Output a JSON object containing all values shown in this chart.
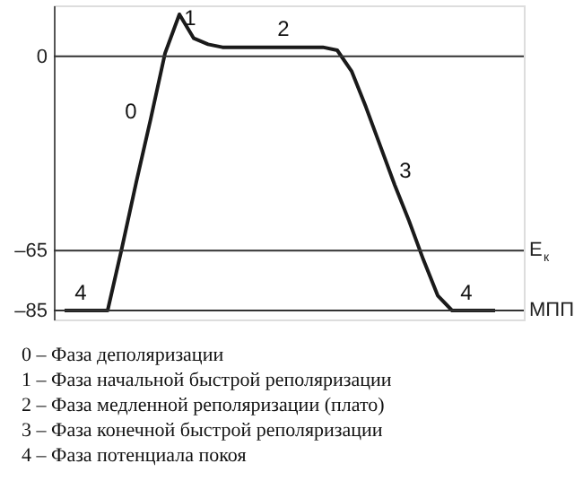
{
  "chart_data": {
    "type": "line",
    "categories": [
      null,
      null,
      null,
      null,
      null,
      null,
      null,
      null,
      null,
      null,
      null,
      null,
      null,
      null,
      null,
      null,
      null,
      null,
      null,
      null,
      null,
      null,
      null,
      null,
      null,
      null,
      null,
      null,
      null,
      null,
      null
    ],
    "values": [
      -85,
      -85,
      -85,
      -85,
      -64,
      -42,
      -21,
      1,
      14,
      6,
      4,
      3,
      3,
      3,
      3,
      3,
      3,
      3,
      3,
      2,
      -5,
      -17,
      -30,
      -43,
      -55,
      -68,
      -80,
      -85,
      -85,
      -85,
      -85
    ],
    "color": "#1a1a1a",
    "ylim": [
      -88,
      17
    ],
    "yticks": [
      0,
      {
        "value": -65,
        "label": "–65"
      },
      {
        "value": -85,
        "label": "–85"
      }
    ],
    "tick_labels": "y",
    "grid": false,
    "marker": "none",
    "line_style": "solid",
    "ref_lines": [
      {
        "axis": "y",
        "value": 0
      },
      {
        "axis": "y",
        "value": -65,
        "label": "E$_{к}$"
      },
      {
        "axis": "y",
        "value": -85,
        "label": "МПП"
      }
    ],
    "annotations": [
      "0",
      "1",
      "2",
      "3",
      "4",
      "4",
      "0 – Фаза деполяризации",
      "1 – Фаза начальной быстрой  реполяризации",
      "2 – Фаза медленной реполяризации (плато)",
      "3 – Фаза конечной быстрой реполяризации",
      "4 – Фаза потенциала покоя"
    ]
  }
}
